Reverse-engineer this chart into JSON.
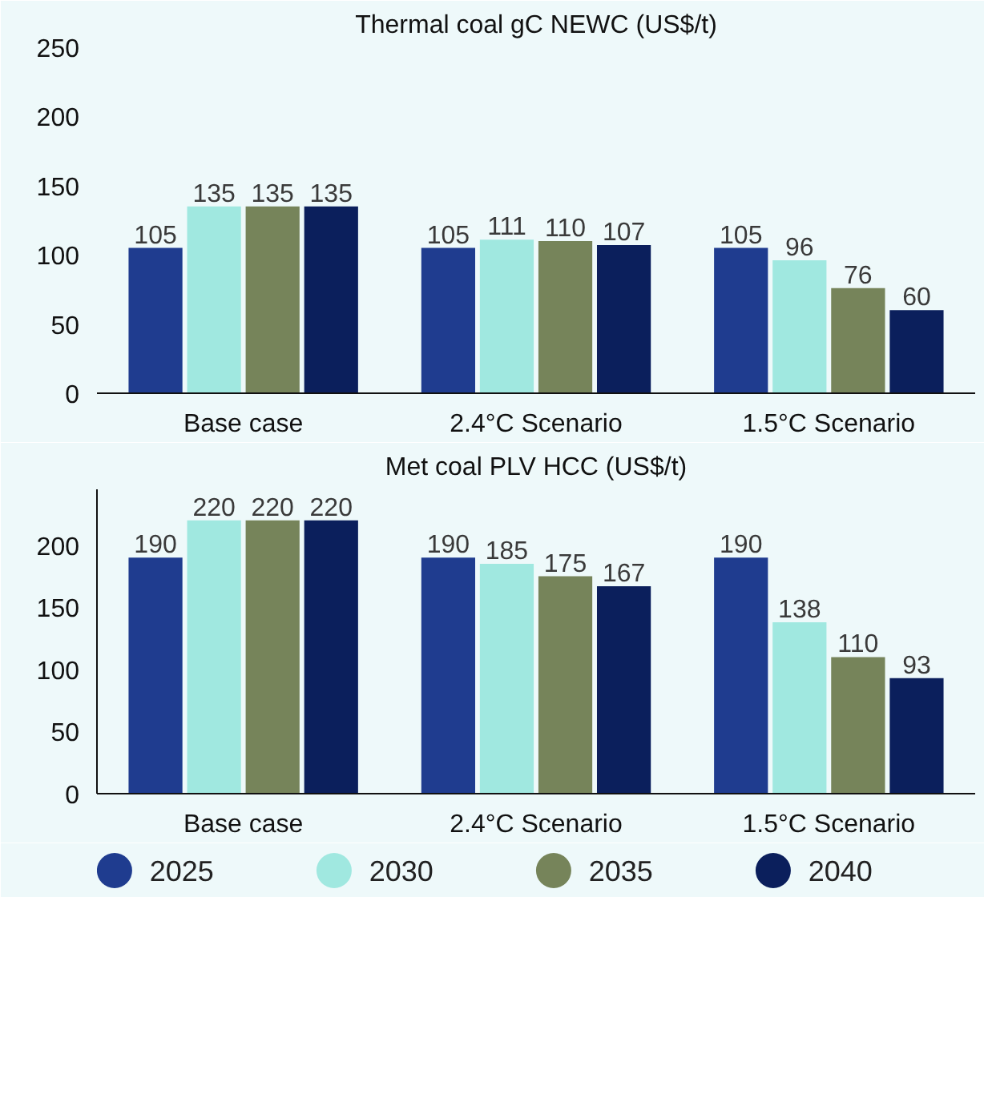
{
  "chart_data": [
    {
      "type": "bar",
      "title": "Thermal coal gC NEWC (US$/t)",
      "categories": [
        "Base case",
        "2.4°C Scenario",
        "1.5°C Scenario"
      ],
      "ylim": [
        0,
        250
      ],
      "yticks": [
        0,
        50,
        100,
        150,
        200,
        250
      ],
      "grid": false,
      "legend": false,
      "data_labels": true,
      "series": [
        {
          "color": "#1f3c8f",
          "values": [
            105,
            105,
            105
          ]
        },
        {
          "color": "#a0e8e0",
          "values": [
            135,
            111,
            96
          ]
        },
        {
          "color": "#76845a",
          "values": [
            135,
            110,
            76
          ]
        },
        {
          "color": "#0b1f5c",
          "values": [
            135,
            107,
            60
          ]
        }
      ]
    },
    {
      "type": "bar",
      "title": "Met coal PLV HCC (US$/t)",
      "categories": [
        "Base case",
        "2.4°C Scenario",
        "1.5°C Scenario"
      ],
      "ylim": [
        0,
        245
      ],
      "yticks": [
        0,
        50,
        100,
        150,
        200
      ],
      "grid": false,
      "legend": "bottom",
      "data_labels": true,
      "series": [
        {
          "name": "2025",
          "color": "#1f3c8f",
          "values": [
            190,
            190,
            190
          ]
        },
        {
          "name": "2030",
          "color": "#a0e8e0",
          "values": [
            220,
            185,
            138
          ]
        },
        {
          "name": "2035",
          "color": "#76845a",
          "values": [
            220,
            175,
            110
          ]
        },
        {
          "name": "2040",
          "color": "#0b1f5c",
          "values": [
            220,
            167,
            93
          ]
        }
      ]
    }
  ]
}
